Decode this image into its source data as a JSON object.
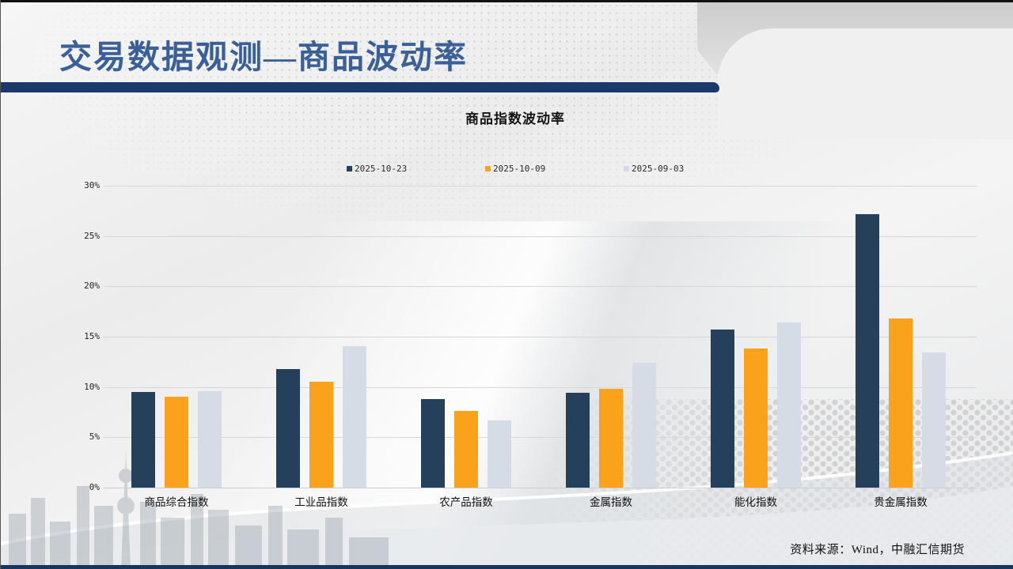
{
  "slide": {
    "title": "交易数据观测—商品波动率",
    "source_note": "资料来源：Wind，中融汇信期货"
  },
  "colors": {
    "title_text": "#3a6097",
    "title_bar": "#1a3a6b",
    "series_1": "#24405a",
    "series_2": "#faa21b",
    "series_3": "#d6dce5"
  },
  "chart_data": {
    "type": "bar",
    "title": "商品指数波动率",
    "categories": [
      "商品综合指数",
      "工业品指数",
      "农产品指数",
      "金属指数",
      "能化指数",
      "贵金属指数"
    ],
    "series": [
      {
        "name": "2025-10-23",
        "color": "#24405a",
        "values": [
          9.5,
          11.8,
          8.8,
          9.4,
          15.7,
          27.2
        ]
      },
      {
        "name": "2025-10-09",
        "color": "#faa21b",
        "values": [
          9.0,
          10.5,
          7.6,
          9.8,
          13.8,
          16.8
        ]
      },
      {
        "name": "2025-09-03",
        "color": "#d6dce5",
        "values": [
          9.6,
          14.1,
          6.7,
          12.4,
          16.4,
          13.4
        ]
      }
    ],
    "ylim": [
      0,
      30
    ],
    "y_tick_step": 5,
    "y_tick_suffix": "%",
    "grid": true,
    "legend_position": "top"
  }
}
